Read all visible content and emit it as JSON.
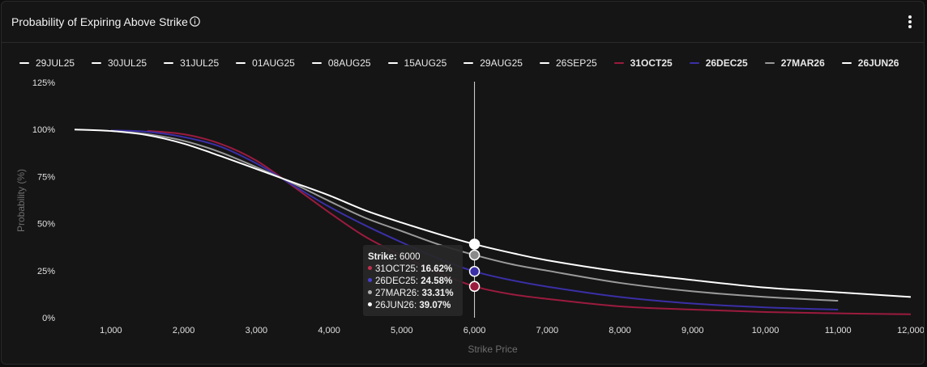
{
  "header": {
    "title": "Probability of Expiring Above Strike",
    "info_icon": "info-circle-icon",
    "menu_icon": "more-vertical-icon"
  },
  "legend": [
    {
      "label": "29JUL25",
      "color": "#ffffff",
      "bold": false
    },
    {
      "label": "30JUL25",
      "color": "#ffffff",
      "bold": false
    },
    {
      "label": "31JUL25",
      "color": "#ffffff",
      "bold": false
    },
    {
      "label": "01AUG25",
      "color": "#ffffff",
      "bold": false
    },
    {
      "label": "08AUG25",
      "color": "#ffffff",
      "bold": false
    },
    {
      "label": "15AUG25",
      "color": "#ffffff",
      "bold": false
    },
    {
      "label": "29AUG25",
      "color": "#ffffff",
      "bold": false
    },
    {
      "label": "26SEP25",
      "color": "#ffffff",
      "bold": false
    },
    {
      "label": "31OCT25",
      "color": "#9b1b3e",
      "bold": true
    },
    {
      "label": "26DEC25",
      "color": "#3a2fa6",
      "bold": true
    },
    {
      "label": "27MAR26",
      "color": "#9a9a9a",
      "bold": true
    },
    {
      "label": "26JUN26",
      "color": "#ffffff",
      "bold": true
    }
  ],
  "tooltip": {
    "strike_label": "Strike:",
    "strike_value": "6000",
    "rows": [
      {
        "label": "31OCT25:",
        "value": "16.62%",
        "color": "#9b1b3e"
      },
      {
        "label": "26DEC25:",
        "value": "24.58%",
        "color": "#3a2fa6"
      },
      {
        "label": "27MAR26:",
        "value": "33.31%",
        "color": "#9a9a9a"
      },
      {
        "label": "26JUN26:",
        "value": "39.07%",
        "color": "#ffffff"
      }
    ]
  },
  "chart_data": {
    "type": "line",
    "xlabel": "Strike Price",
    "ylabel": "Probability (%)",
    "xlim": [
      500,
      12000
    ],
    "ylim": [
      0,
      125
    ],
    "x_ticks": [
      1000,
      2000,
      3000,
      4000,
      5000,
      6000,
      7000,
      8000,
      9000,
      10000,
      11000,
      12000
    ],
    "x_tick_labels": [
      "1,000",
      "2,000",
      "3,000",
      "4,000",
      "5,000",
      "6,000",
      "7,000",
      "8,000",
      "9,000",
      "10,000",
      "11,000",
      "12,000"
    ],
    "y_ticks": [
      0,
      25,
      50,
      75,
      100,
      125
    ],
    "y_tick_labels": [
      "0%",
      "25%",
      "50%",
      "75%",
      "100%",
      "125%"
    ],
    "grid": false,
    "crosshair_x": 6000,
    "series": [
      {
        "name": "31OCT25",
        "color": "#9b1b3e",
        "x": [
          1500,
          2000,
          2500,
          3000,
          3500,
          4000,
          4500,
          5000,
          5500,
          6000,
          6500,
          7000,
          8000,
          9000,
          10000,
          11000,
          12000
        ],
        "y": [
          99.3,
          97.5,
          92.5,
          83.5,
          70,
          56,
          43,
          33,
          24,
          16.62,
          12.5,
          10,
          6,
          4.3,
          3,
          2.3,
          1.8
        ]
      },
      {
        "name": "26DEC25",
        "color": "#3a2fa6",
        "x": [
          1000,
          1500,
          2000,
          2500,
          3000,
          3500,
          4000,
          4500,
          5000,
          5500,
          6000,
          6500,
          7000,
          8000,
          9000,
          10000,
          11000
        ],
        "y": [
          99.5,
          98.8,
          96,
          91,
          82,
          70.5,
          59,
          49,
          40,
          31.5,
          24.58,
          20,
          16.5,
          11,
          7.5,
          5.5,
          4.3
        ]
      },
      {
        "name": "27MAR26",
        "color": "#9a9a9a",
        "x": [
          1000,
          1500,
          2000,
          2500,
          3000,
          3500,
          4000,
          4500,
          5000,
          5500,
          6000,
          6500,
          7000,
          8000,
          9000,
          10000,
          11000
        ],
        "y": [
          99.3,
          97.5,
          94,
          88,
          80,
          71.5,
          62,
          53,
          46,
          39,
          33.31,
          28.5,
          25,
          18.5,
          14,
          11,
          9
        ]
      },
      {
        "name": "26JUN26",
        "color": "#ffffff",
        "x": [
          500,
          1000,
          1500,
          2000,
          2500,
          3000,
          3500,
          4000,
          4500,
          5000,
          5500,
          6000,
          6500,
          7000,
          8000,
          9000,
          10000,
          11000,
          12000
        ],
        "y": [
          100,
          99.2,
          97,
          92.5,
          86,
          79,
          72,
          65,
          57,
          50.5,
          44.5,
          39.07,
          34.5,
          30.5,
          24.5,
          20,
          16,
          13.5,
          11
        ]
      }
    ]
  }
}
